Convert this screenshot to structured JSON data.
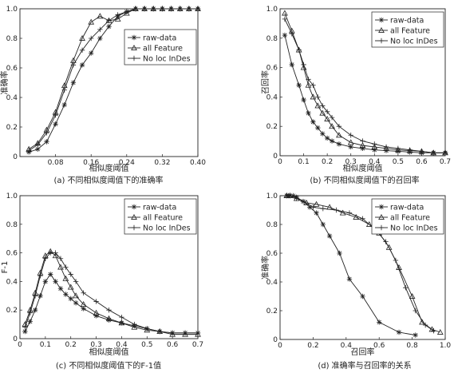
{
  "figure": {
    "panels": [
      {
        "id": "a",
        "caption": "(a) 不同相似度阈值下的准确率"
      },
      {
        "id": "b",
        "caption": "(b) 不同相似度阈值下的召回率"
      },
      {
        "id": "c",
        "caption": "(c) 不同相似度阈值下的F-1值"
      },
      {
        "id": "d",
        "caption": "(d) 准确率与召回率的关系"
      }
    ]
  },
  "chart_data": [
    {
      "id": "a",
      "type": "line",
      "title": "",
      "xlabel": "相似度阈值",
      "ylabel": "准确率",
      "xlim": [
        0,
        0.4
      ],
      "ylim": [
        0,
        1
      ],
      "xticks": [
        "0.08",
        "0.16",
        "0.24",
        "0.32",
        "0.40"
      ],
      "xtick_values": [
        0.08,
        0.16,
        0.24,
        0.32,
        0.4
      ],
      "yticks": [
        "0",
        "0.2",
        "0.4",
        "0.6",
        "0.8",
        "1.0"
      ],
      "ytick_values": [
        0,
        0.2,
        0.4,
        0.6,
        0.8,
        1.0
      ],
      "grid": false,
      "legend_position": "right-middle",
      "series": [
        {
          "name": "raw-data",
          "marker": "star",
          "x": [
            0.02,
            0.04,
            0.06,
            0.08,
            0.1,
            0.12,
            0.14,
            0.16,
            0.18,
            0.2,
            0.22,
            0.24,
            0.26,
            0.28,
            0.3,
            0.32,
            0.34,
            0.36,
            0.38,
            0.4
          ],
          "y": [
            0.03,
            0.05,
            0.1,
            0.22,
            0.35,
            0.5,
            0.62,
            0.7,
            0.8,
            0.88,
            0.95,
            0.98,
            1.0,
            1.0,
            1.0,
            1.0,
            1.0,
            1.0,
            1.0,
            1.0
          ]
        },
        {
          "name": "all Feature",
          "marker": "triangle",
          "x": [
            0.02,
            0.04,
            0.06,
            0.08,
            0.1,
            0.12,
            0.14,
            0.16,
            0.18,
            0.2,
            0.22,
            0.24,
            0.26,
            0.28,
            0.3,
            0.32,
            0.34,
            0.36,
            0.38,
            0.4
          ],
          "y": [
            0.05,
            0.09,
            0.18,
            0.3,
            0.48,
            0.65,
            0.8,
            0.91,
            0.95,
            0.92,
            0.93,
            0.97,
            1.0,
            1.0,
            1.0,
            1.0,
            1.0,
            1.0,
            1.0,
            1.0
          ]
        },
        {
          "name": "No loc InDes",
          "marker": "plus",
          "x": [
            0.02,
            0.04,
            0.06,
            0.08,
            0.1,
            0.12,
            0.14,
            0.16,
            0.18,
            0.2,
            0.22,
            0.24,
            0.26,
            0.28,
            0.3,
            0.32,
            0.34,
            0.36,
            0.38,
            0.4
          ],
          "y": [
            0.04,
            0.08,
            0.16,
            0.28,
            0.45,
            0.62,
            0.72,
            0.8,
            0.86,
            0.92,
            0.96,
            0.98,
            1.0,
            1.0,
            1.0,
            1.0,
            1.0,
            1.0,
            1.0,
            1.0
          ]
        }
      ]
    },
    {
      "id": "b",
      "type": "line",
      "title": "",
      "xlabel": "相似度阈值",
      "ylabel": "召回率",
      "xlim": [
        0,
        0.7
      ],
      "ylim": [
        0,
        1
      ],
      "xticks": [
        "0",
        "0.1",
        "0.2",
        "0.3",
        "0.4",
        "0.5",
        "0.6",
        "0.7"
      ],
      "xtick_values": [
        0,
        0.1,
        0.2,
        0.3,
        0.4,
        0.5,
        0.6,
        0.7
      ],
      "yticks": [
        "0",
        "0.2",
        "0.4",
        "0.6",
        "0.8",
        "1.0"
      ],
      "ytick_values": [
        0,
        0.2,
        0.4,
        0.6,
        0.8,
        1.0
      ],
      "grid": false,
      "legend_position": "top-right",
      "series": [
        {
          "name": "raw-data",
          "marker": "star",
          "x": [
            0.02,
            0.05,
            0.08,
            0.1,
            0.12,
            0.14,
            0.16,
            0.18,
            0.2,
            0.22,
            0.25,
            0.3,
            0.35,
            0.4,
            0.45,
            0.5,
            0.55,
            0.6,
            0.65,
            0.7
          ],
          "y": [
            0.82,
            0.62,
            0.48,
            0.38,
            0.29,
            0.23,
            0.19,
            0.15,
            0.12,
            0.1,
            0.08,
            0.06,
            0.05,
            0.04,
            0.035,
            0.03,
            0.025,
            0.02,
            0.02,
            0.02
          ]
        },
        {
          "name": "all Feature",
          "marker": "triangle",
          "x": [
            0.02,
            0.05,
            0.08,
            0.1,
            0.12,
            0.14,
            0.16,
            0.18,
            0.2,
            0.22,
            0.25,
            0.3,
            0.35,
            0.4,
            0.45,
            0.5,
            0.55,
            0.6,
            0.65,
            0.7
          ],
          "y": [
            0.97,
            0.85,
            0.72,
            0.6,
            0.48,
            0.4,
            0.34,
            0.29,
            0.25,
            0.2,
            0.14,
            0.09,
            0.07,
            0.06,
            0.05,
            0.04,
            0.035,
            0.03,
            0.02,
            0.02
          ]
        },
        {
          "name": "No loc InDes",
          "marker": "plus",
          "x": [
            0.02,
            0.05,
            0.08,
            0.1,
            0.12,
            0.14,
            0.16,
            0.18,
            0.2,
            0.22,
            0.25,
            0.3,
            0.35,
            0.4,
            0.45,
            0.5,
            0.55,
            0.6,
            0.65,
            0.7
          ],
          "y": [
            0.93,
            0.83,
            0.72,
            0.62,
            0.52,
            0.48,
            0.4,
            0.34,
            0.3,
            0.26,
            0.2,
            0.14,
            0.1,
            0.08,
            0.06,
            0.05,
            0.04,
            0.03,
            0.02,
            0.02
          ]
        }
      ]
    },
    {
      "id": "c",
      "type": "line",
      "title": "",
      "xlabel": "相似度阈值",
      "ylabel": "F-1",
      "xlim": [
        0,
        0.7
      ],
      "ylim": [
        0,
        1
      ],
      "xticks": [
        "0",
        "0.1",
        "0.2",
        "0.3",
        "0.4",
        "0.5",
        "0.6",
        "0.7"
      ],
      "xtick_values": [
        0,
        0.1,
        0.2,
        0.3,
        0.4,
        0.5,
        0.6,
        0.7
      ],
      "yticks": [
        "0",
        "0.2",
        "0.4",
        "0.6",
        "0.8",
        "1.0"
      ],
      "ytick_values": [
        0,
        0.2,
        0.4,
        0.6,
        0.8,
        1.0
      ],
      "grid": false,
      "legend_position": "top-right",
      "series": [
        {
          "name": "raw-data",
          "marker": "star",
          "x": [
            0.02,
            0.04,
            0.06,
            0.08,
            0.1,
            0.12,
            0.14,
            0.16,
            0.18,
            0.2,
            0.22,
            0.25,
            0.3,
            0.35,
            0.4,
            0.45,
            0.5,
            0.55,
            0.6,
            0.65,
            0.7
          ],
          "y": [
            0.05,
            0.12,
            0.2,
            0.3,
            0.4,
            0.45,
            0.4,
            0.35,
            0.31,
            0.28,
            0.25,
            0.21,
            0.16,
            0.13,
            0.11,
            0.09,
            0.07,
            0.05,
            0.04,
            0.04,
            0.04
          ]
        },
        {
          "name": "all Feature",
          "marker": "triangle",
          "x": [
            0.02,
            0.04,
            0.06,
            0.08,
            0.1,
            0.12,
            0.14,
            0.16,
            0.18,
            0.2,
            0.22,
            0.25,
            0.3,
            0.35,
            0.4,
            0.45,
            0.5,
            0.55,
            0.6,
            0.65,
            0.7
          ],
          "y": [
            0.1,
            0.2,
            0.32,
            0.46,
            0.58,
            0.61,
            0.58,
            0.5,
            0.42,
            0.36,
            0.3,
            0.24,
            0.18,
            0.14,
            0.11,
            0.08,
            0.06,
            0.05,
            0.03,
            0.03,
            0.03
          ]
        },
        {
          "name": "No loc InDes",
          "marker": "plus",
          "x": [
            0.02,
            0.04,
            0.06,
            0.08,
            0.1,
            0.12,
            0.14,
            0.16,
            0.18,
            0.2,
            0.22,
            0.25,
            0.3,
            0.35,
            0.4,
            0.45,
            0.5,
            0.55,
            0.6,
            0.65,
            0.7
          ],
          "y": [
            0.08,
            0.18,
            0.3,
            0.44,
            0.56,
            0.6,
            0.6,
            0.56,
            0.5,
            0.45,
            0.4,
            0.32,
            0.26,
            0.2,
            0.15,
            0.1,
            0.07,
            0.05,
            0.04,
            0.04,
            0.04
          ]
        }
      ]
    },
    {
      "id": "d",
      "type": "line",
      "title": "",
      "xlabel": "召回率",
      "ylabel": "准确率",
      "xlim": [
        0,
        1
      ],
      "ylim": [
        0,
        1
      ],
      "xticks": [
        "0",
        "0.2",
        "0.4",
        "0.6",
        "0.8",
        "1.0"
      ],
      "xtick_values": [
        0,
        0.2,
        0.4,
        0.6,
        0.8,
        1.0
      ],
      "yticks": [
        "0",
        "0.2",
        "0.4",
        "0.6",
        "0.8",
        "1.0"
      ],
      "ytick_values": [
        0,
        0.2,
        0.4,
        0.6,
        0.8,
        1.0
      ],
      "grid": false,
      "legend_position": "top-right",
      "series": [
        {
          "name": "raw-data",
          "marker": "star",
          "x": [
            0.82,
            0.72,
            0.6,
            0.5,
            0.42,
            0.36,
            0.3,
            0.26,
            0.22,
            0.18,
            0.14,
            0.1,
            0.08,
            0.06,
            0.05,
            0.04
          ],
          "y": [
            0.03,
            0.05,
            0.12,
            0.3,
            0.42,
            0.6,
            0.72,
            0.8,
            0.88,
            0.92,
            0.96,
            0.99,
            1.0,
            1.0,
            1.0,
            1.0
          ]
        },
        {
          "name": "all Feature",
          "marker": "triangle",
          "x": [
            0.97,
            0.92,
            0.86,
            0.8,
            0.72,
            0.66,
            0.6,
            0.54,
            0.46,
            0.38,
            0.3,
            0.22,
            0.16,
            0.1,
            0.06,
            0.04
          ],
          "y": [
            0.05,
            0.07,
            0.12,
            0.3,
            0.5,
            0.64,
            0.74,
            0.8,
            0.85,
            0.88,
            0.92,
            0.94,
            0.95,
            0.98,
            1.0,
            1.0
          ]
        },
        {
          "name": "No loc InDes",
          "marker": "plus",
          "x": [
            0.93,
            0.88,
            0.82,
            0.76,
            0.7,
            0.64,
            0.58,
            0.5,
            0.42,
            0.34,
            0.26,
            0.2,
            0.14,
            0.1,
            0.06,
            0.04
          ],
          "y": [
            0.06,
            0.1,
            0.2,
            0.36,
            0.55,
            0.68,
            0.76,
            0.84,
            0.88,
            0.9,
            0.91,
            0.92,
            0.96,
            0.98,
            1.0,
            1.0
          ]
        }
      ]
    }
  ]
}
